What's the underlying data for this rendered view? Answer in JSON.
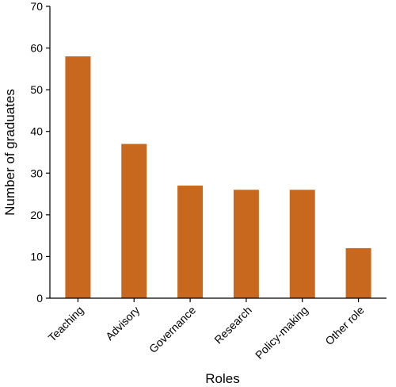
{
  "chart_data": {
    "type": "bar",
    "categories": [
      "Teaching",
      "Advisory",
      "Governance",
      "Research",
      "Policy-making",
      "Other role"
    ],
    "values": [
      58,
      37,
      27,
      26,
      26,
      12
    ],
    "xlabel": "Roles",
    "ylabel": "Number of graduates",
    "ylim": [
      0,
      70
    ],
    "yticks": [
      0,
      10,
      20,
      30,
      40,
      50,
      60,
      70
    ],
    "grid": false,
    "legend": "none",
    "bar_color": "#C8681E"
  }
}
